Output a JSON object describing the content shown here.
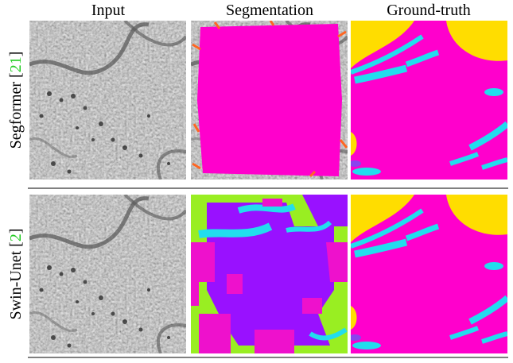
{
  "header": {
    "columns": [
      "Input",
      "Segmentation",
      "Ground-truth"
    ]
  },
  "rows": [
    {
      "label_parts": [
        "Segformer [",
        "21",
        "]"
      ]
    },
    {
      "label_parts": [
        "Swin-Unet [",
        "2",
        "]"
      ]
    }
  ]
}
